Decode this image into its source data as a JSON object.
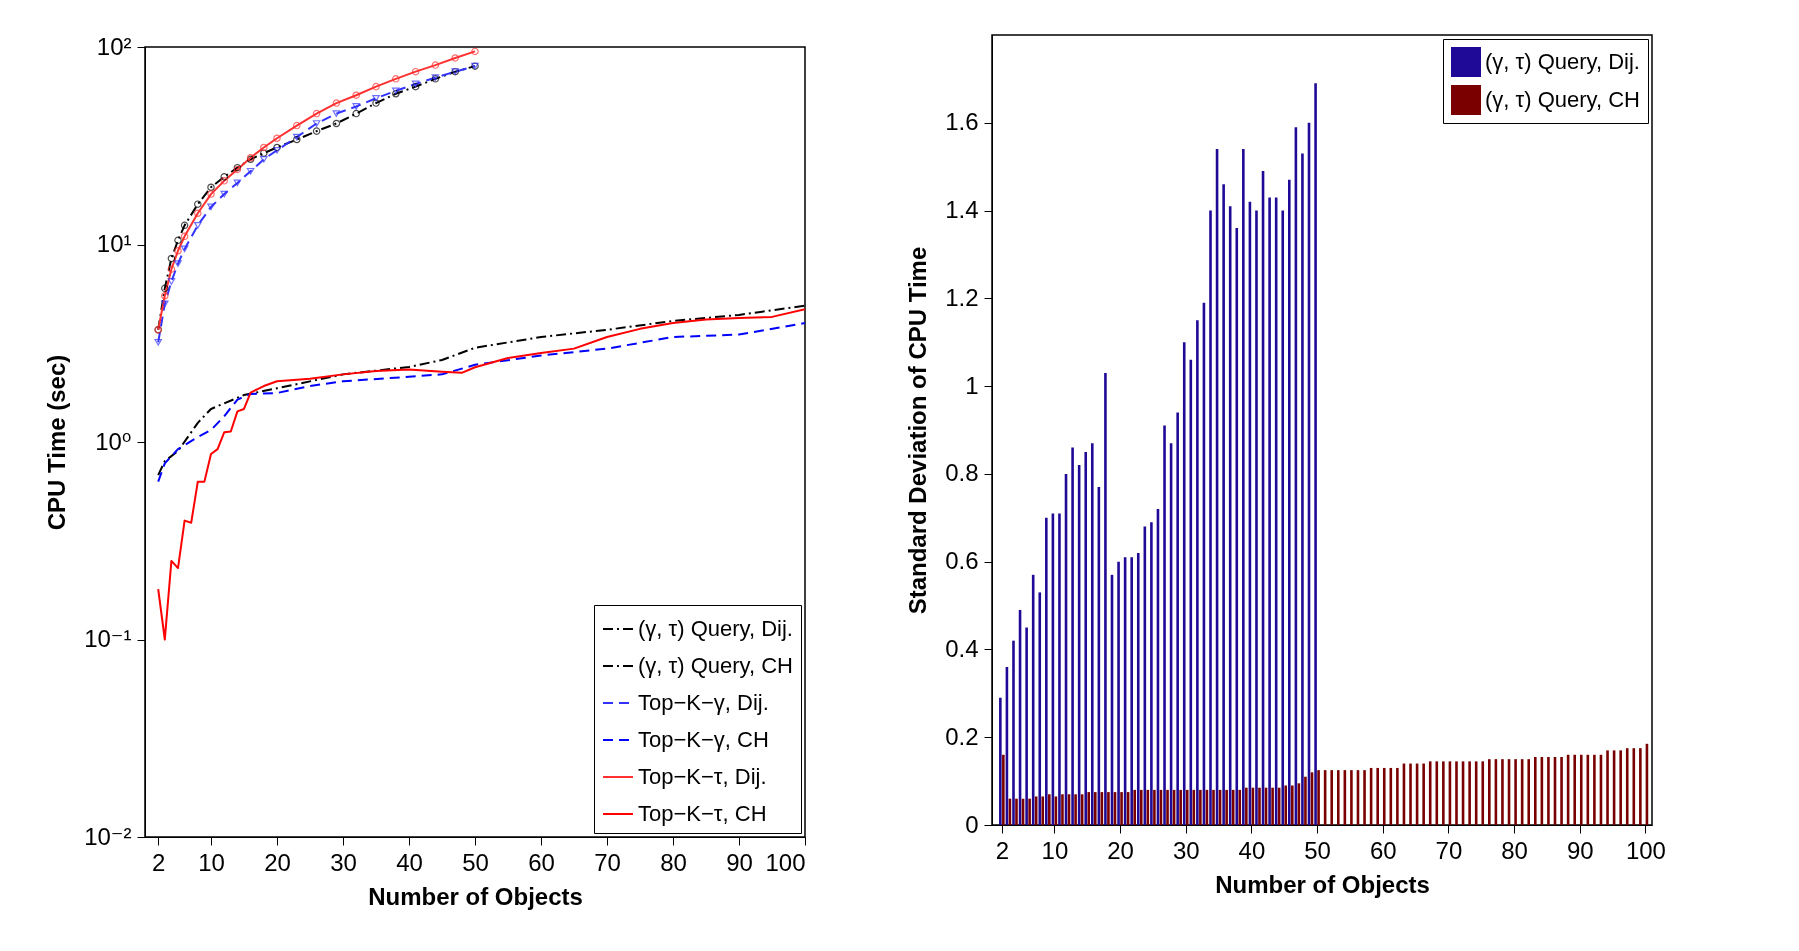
{
  "chart_data": [
    {
      "type": "line",
      "xlabel": "Number of Objects",
      "ylabel": "CPU Time (sec)",
      "log": "y",
      "grid": false,
      "legend": "bottom right",
      "xlim": [
        0,
        100
      ],
      "xticks": [
        2,
        10,
        20,
        30,
        40,
        50,
        60,
        70,
        80,
        90,
        100
      ],
      "ylim": [
        0.01,
        100
      ],
      "yticks": [
        {
          "value": 0.01,
          "label": "10⁻²"
        },
        {
          "value": 0.1,
          "label": "10⁻¹"
        },
        {
          "value": 1,
          "label": "10⁰"
        },
        {
          "value": 10,
          "label": "10¹"
        },
        {
          "value": 100,
          "label": "10²"
        }
      ],
      "series": [
        {
          "name": "(γ, τ) Query, Dij.",
          "color": "#000000",
          "line_style": "dashdot",
          "marker": "circle",
          "x": [
            2,
            3,
            4,
            5,
            6,
            8,
            10,
            12,
            14,
            16,
            18,
            20,
            23,
            26,
            29,
            32,
            35,
            38,
            41,
            44,
            47,
            50
          ],
          "values": [
            3.7,
            6,
            8.5,
            10.5,
            12.5,
            16,
            19.5,
            22,
            24.5,
            27,
            29,
            31,
            34,
            37.5,
            41,
            46,
            52,
            58,
            63,
            69,
            75,
            80
          ]
        },
        {
          "name": "(γ, τ) Query, CH",
          "color": "#000000",
          "line_style": "dashdot",
          "x": [
            2,
            3,
            5,
            8,
            10,
            15,
            20,
            30,
            40,
            45,
            50,
            60,
            70,
            80,
            90,
            100
          ],
          "values": [
            0.68,
            0.8,
            0.9,
            1.25,
            1.47,
            1.73,
            1.87,
            2.2,
            2.4,
            2.6,
            3.0,
            3.4,
            3.7,
            4.1,
            4.4,
            4.9
          ]
        },
        {
          "name": "Top−K−γ, Dij.",
          "color": "#3333ff",
          "line_style": "dashed",
          "marker": "triangle",
          "x": [
            2,
            3,
            4,
            5,
            6,
            8,
            10,
            12,
            14,
            16,
            18,
            20,
            23,
            26,
            29,
            32,
            35,
            38,
            41,
            44,
            47,
            50
          ],
          "values": [
            3.2,
            5,
            6.5,
            8,
            9.5,
            12.5,
            15.5,
            18,
            20.5,
            23.5,
            27,
            30,
            35,
            41,
            46,
            50,
            55,
            60,
            65,
            70,
            75,
            80
          ]
        },
        {
          "name": "Top−K−γ, CH",
          "color": "#0000ff",
          "line_style": "dashed",
          "x": [
            2,
            3,
            5,
            8,
            10,
            12,
            14,
            16,
            20,
            25,
            30,
            40,
            45,
            50,
            60,
            70,
            80,
            90,
            100
          ],
          "values": [
            0.63,
            0.78,
            0.92,
            1.06,
            1.15,
            1.35,
            1.64,
            1.75,
            1.77,
            1.92,
            2.03,
            2.14,
            2.2,
            2.46,
            2.74,
            2.97,
            3.4,
            3.5,
            4.0
          ]
        },
        {
          "name": "Top−K−τ, Dij.",
          "color": "#ff3030",
          "line_style": "solid",
          "marker": "circle",
          "x": [
            2,
            3,
            4,
            5,
            6,
            8,
            10,
            12,
            14,
            16,
            18,
            20,
            23,
            26,
            29,
            32,
            35,
            38,
            41,
            44,
            47,
            50
          ],
          "values": [
            3.7,
            5.5,
            7.5,
            9.3,
            11,
            14.4,
            18,
            21,
            24,
            27.5,
            31,
            34.5,
            40,
            46,
            52,
            57,
            63,
            69,
            75,
            81,
            88,
            95
          ]
        },
        {
          "name": "Top−K−τ, CH",
          "color": "#ff0000",
          "line_style": "solid",
          "x": [
            2,
            3,
            4,
            5,
            6,
            7,
            8,
            9,
            10,
            11,
            12,
            13,
            14,
            15,
            16,
            18,
            20,
            25,
            30,
            35,
            40,
            45,
            48,
            50,
            55,
            60,
            65,
            70,
            75,
            80,
            85,
            90,
            95,
            100
          ],
          "values": [
            0.18,
            0.1,
            0.25,
            0.23,
            0.4,
            0.39,
            0.63,
            0.63,
            0.87,
            0.92,
            1.12,
            1.13,
            1.43,
            1.47,
            1.78,
            1.92,
            2.03,
            2.09,
            2.2,
            2.29,
            2.33,
            2.27,
            2.24,
            2.39,
            2.66,
            2.82,
            2.97,
            3.4,
            3.74,
            4.0,
            4.17,
            4.24,
            4.3,
            4.7
          ]
        }
      ]
    },
    {
      "type": "bar",
      "xlabel": "Number of Objects",
      "ylabel": "Standard Deviation of CPU Time",
      "grid": false,
      "legend": "top right",
      "xlim": [
        0.5,
        101
      ],
      "xticks": [
        2,
        10,
        20,
        30,
        40,
        50,
        60,
        70,
        80,
        90,
        100
      ],
      "ylim": [
        0,
        1.8
      ],
      "yticks": [
        0,
        0.2,
        0.4,
        0.6,
        0.8,
        1,
        1.2,
        1.4,
        1.6
      ],
      "series": [
        {
          "name": "(γ, τ) Query, Dij.",
          "color": "#1e0a96",
          "x": [
            2,
            3,
            4,
            5,
            6,
            7,
            8,
            9,
            10,
            11,
            12,
            13,
            14,
            15,
            16,
            17,
            18,
            19,
            20,
            21,
            22,
            23,
            24,
            25,
            26,
            27,
            28,
            29,
            30,
            31,
            32,
            33,
            34,
            35,
            36,
            37,
            38,
            39,
            40,
            41,
            42,
            43,
            44,
            45,
            46,
            47,
            48,
            49,
            50
          ],
          "values": [
            0.29,
            0.36,
            0.42,
            0.49,
            0.45,
            0.57,
            0.53,
            0.7,
            0.71,
            0.71,
            0.8,
            0.86,
            0.82,
            0.85,
            0.87,
            0.77,
            1.03,
            0.57,
            0.6,
            0.61,
            0.61,
            0.62,
            0.68,
            0.69,
            0.72,
            0.91,
            0.87,
            0.94,
            1.1,
            1.06,
            1.15,
            1.19,
            1.4,
            1.54,
            1.46,
            1.41,
            1.36,
            1.54,
            1.42,
            1.4,
            1.49,
            1.43,
            1.43,
            1.4,
            1.47,
            1.59,
            1.53,
            1.6,
            1.69
          ]
        },
        {
          "name": "(γ, τ) Query, CH",
          "color": "#7a0000",
          "x": [
            2,
            3,
            4,
            5,
            6,
            7,
            8,
            9,
            10,
            11,
            12,
            13,
            14,
            15,
            16,
            17,
            18,
            19,
            20,
            21,
            22,
            23,
            24,
            25,
            26,
            27,
            28,
            29,
            30,
            31,
            32,
            33,
            34,
            35,
            36,
            37,
            38,
            39,
            40,
            41,
            42,
            43,
            44,
            45,
            46,
            47,
            48,
            49,
            50,
            51,
            52,
            53,
            54,
            55,
            56,
            57,
            58,
            59,
            60,
            61,
            62,
            63,
            64,
            65,
            66,
            67,
            68,
            69,
            70,
            71,
            72,
            73,
            74,
            75,
            76,
            77,
            78,
            79,
            80,
            81,
            82,
            83,
            84,
            85,
            86,
            87,
            88,
            89,
            90,
            91,
            92,
            93,
            94,
            95,
            96,
            97,
            98,
            99,
            100
          ],
          "values": [
            0.16,
            0.06,
            0.06,
            0.06,
            0.06,
            0.065,
            0.065,
            0.07,
            0.065,
            0.07,
            0.07,
            0.07,
            0.07,
            0.075,
            0.075,
            0.075,
            0.075,
            0.075,
            0.075,
            0.075,
            0.08,
            0.08,
            0.08,
            0.08,
            0.08,
            0.08,
            0.08,
            0.08,
            0.08,
            0.08,
            0.08,
            0.08,
            0.08,
            0.08,
            0.08,
            0.08,
            0.08,
            0.085,
            0.085,
            0.085,
            0.085,
            0.085,
            0.085,
            0.09,
            0.09,
            0.095,
            0.11,
            0.12,
            0.125,
            0.125,
            0.125,
            0.125,
            0.125,
            0.125,
            0.125,
            0.125,
            0.13,
            0.13,
            0.13,
            0.13,
            0.13,
            0.14,
            0.14,
            0.14,
            0.14,
            0.145,
            0.145,
            0.145,
            0.145,
            0.145,
            0.145,
            0.145,
            0.145,
            0.145,
            0.15,
            0.15,
            0.15,
            0.15,
            0.15,
            0.15,
            0.15,
            0.155,
            0.155,
            0.155,
            0.155,
            0.155,
            0.16,
            0.16,
            0.16,
            0.16,
            0.16,
            0.16,
            0.17,
            0.17,
            0.17,
            0.175,
            0.175,
            0.175,
            0.185
          ]
        }
      ]
    }
  ]
}
